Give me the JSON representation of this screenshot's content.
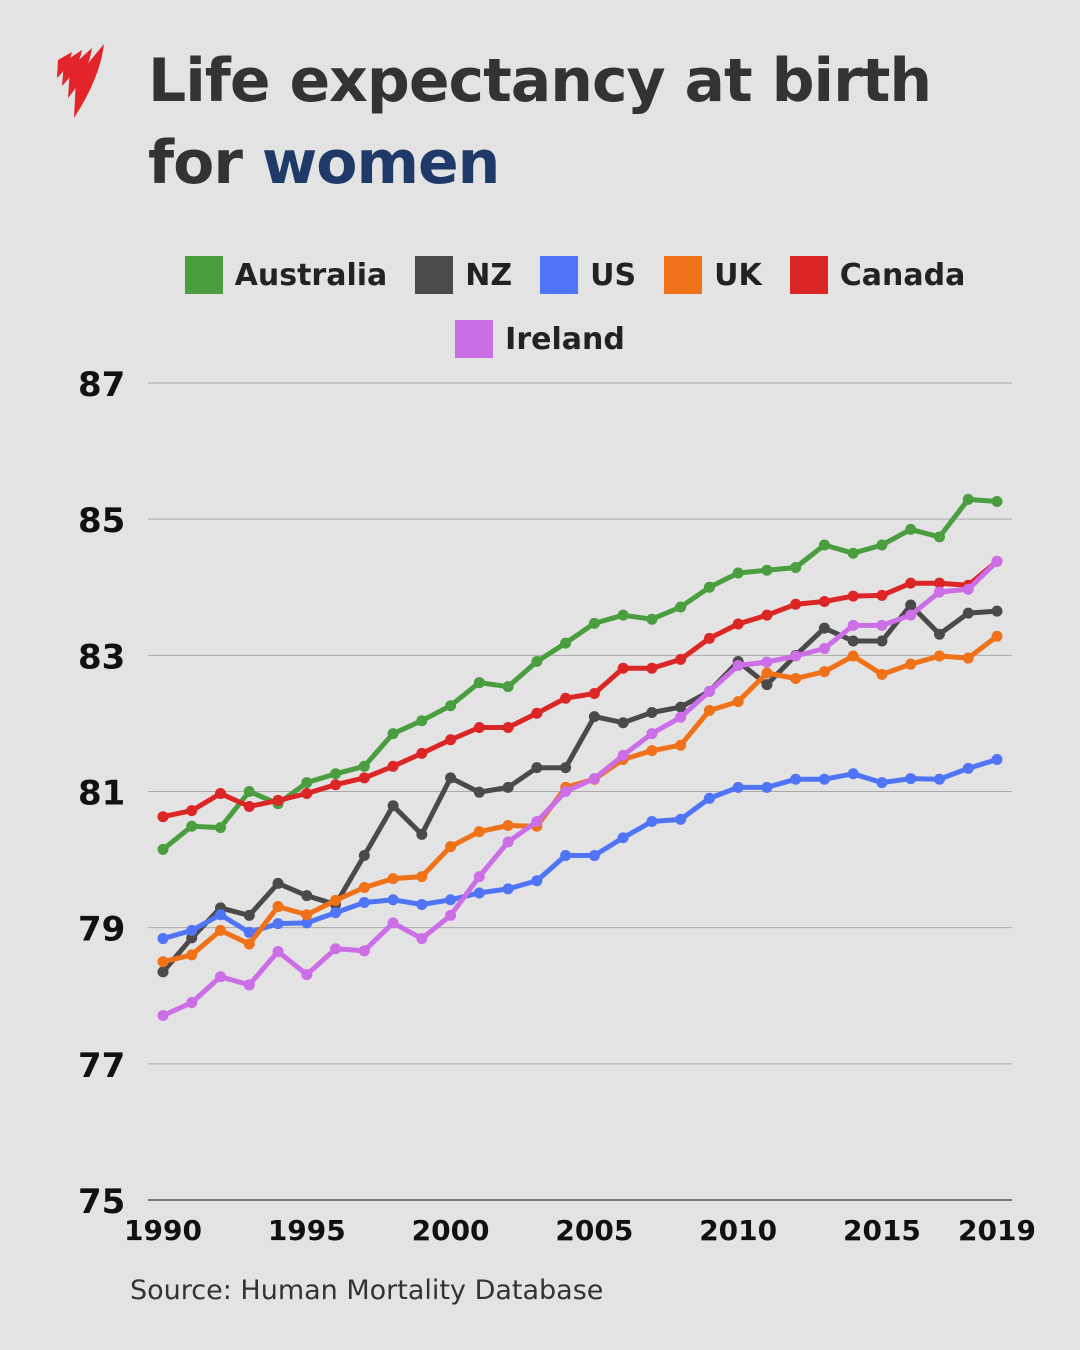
{
  "title": {
    "line1": "Life expectancy at birth",
    "line2_prefix": "for ",
    "line2_highlight": "women",
    "highlight_color": "#1f3a68"
  },
  "source": "Source: Human Mortality Database",
  "logo": {
    "brand": "SBS",
    "color": "#e3242b"
  },
  "chart_data": {
    "type": "line",
    "title": "Life expectancy at birth for women",
    "xlabel": "",
    "ylabel": "",
    "xlim": [
      1990,
      2019
    ],
    "ylim": [
      75,
      87
    ],
    "yticks": [
      75,
      77,
      79,
      81,
      83,
      85,
      87
    ],
    "xticks": [
      1990,
      1995,
      2000,
      2005,
      2010,
      2015,
      2019
    ],
    "grid": "horizontal",
    "legend_placement": "top",
    "x": [
      1990,
      1991,
      1992,
      1993,
      1994,
      1995,
      1996,
      1997,
      1998,
      1999,
      2000,
      2001,
      2002,
      2003,
      2004,
      2005,
      2006,
      2007,
      2008,
      2009,
      2010,
      2011,
      2012,
      2013,
      2014,
      2015,
      2016,
      2017,
      2018,
      2019
    ],
    "series": [
      {
        "name": "Australia",
        "color": "#4a9e3f",
        "values": [
          80.15,
          80.49,
          80.47,
          81.0,
          80.82,
          81.13,
          81.26,
          81.37,
          81.85,
          82.04,
          82.26,
          82.6,
          82.54,
          82.91,
          83.18,
          83.47,
          83.59,
          83.53,
          83.71,
          84.0,
          84.21,
          84.25,
          84.29,
          84.62,
          84.5,
          84.62,
          84.85,
          84.74,
          85.29,
          85.26
        ]
      },
      {
        "name": "NZ",
        "color": "#4a4a4a",
        "values": [
          78.35,
          78.85,
          79.29,
          79.18,
          79.65,
          79.47,
          79.34,
          80.06,
          80.79,
          80.37,
          81.2,
          80.99,
          81.06,
          81.35,
          81.35,
          82.1,
          82.01,
          82.16,
          82.24,
          82.47,
          82.91,
          82.57,
          83.0,
          83.4,
          83.21,
          83.21,
          83.74,
          83.31,
          83.62,
          83.65
        ]
      },
      {
        "name": "US",
        "color": "#4f74f5",
        "values": [
          78.84,
          78.96,
          79.19,
          78.93,
          79.06,
          79.07,
          79.22,
          79.37,
          79.41,
          79.34,
          79.41,
          79.51,
          79.57,
          79.69,
          80.06,
          80.06,
          80.32,
          80.56,
          80.59,
          80.9,
          81.06,
          81.06,
          81.18,
          81.18,
          81.26,
          81.13,
          81.19,
          81.18,
          81.34,
          81.47
        ]
      },
      {
        "name": "UK",
        "color": "#ef7118",
        "values": [
          78.5,
          78.6,
          78.96,
          78.76,
          79.31,
          79.19,
          79.4,
          79.59,
          79.72,
          79.75,
          80.19,
          80.41,
          80.5,
          80.49,
          81.06,
          81.18,
          81.47,
          81.6,
          81.68,
          82.19,
          82.32,
          82.74,
          82.66,
          82.76,
          82.99,
          82.72,
          82.87,
          82.99,
          82.96,
          83.28
        ]
      },
      {
        "name": "Canada",
        "color": "#dc2626",
        "values": [
          80.63,
          80.72,
          80.97,
          80.78,
          80.87,
          80.97,
          81.1,
          81.2,
          81.37,
          81.56,
          81.76,
          81.94,
          81.94,
          82.15,
          82.37,
          82.44,
          82.81,
          82.81,
          82.94,
          83.25,
          83.46,
          83.59,
          83.75,
          83.79,
          83.87,
          83.88,
          84.06,
          84.06,
          84.03,
          84.38
        ]
      },
      {
        "name": "Ireland",
        "color": "#cc6ee6",
        "values": [
          77.71,
          77.9,
          78.28,
          78.16,
          78.65,
          78.31,
          78.69,
          78.66,
          79.07,
          78.84,
          79.18,
          79.75,
          80.26,
          80.56,
          81.0,
          81.19,
          81.53,
          81.85,
          82.09,
          82.47,
          82.85,
          82.9,
          82.99,
          83.1,
          83.44,
          83.44,
          83.59,
          83.93,
          83.97,
          84.38
        ]
      }
    ]
  }
}
